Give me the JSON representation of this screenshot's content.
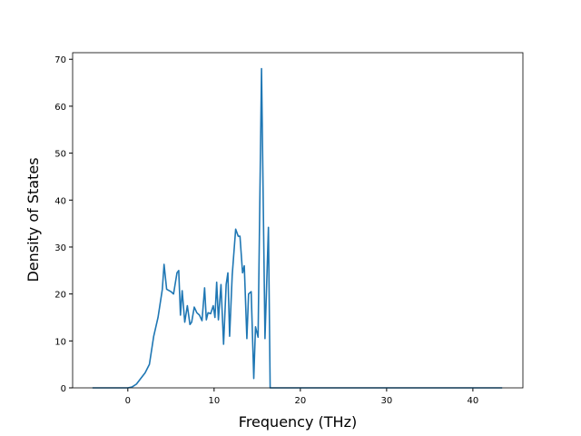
{
  "chart_data": {
    "type": "line",
    "x_label": "Frequency (THz)",
    "y_label": "Density of States",
    "x": [
      -4.1,
      0,
      0.5,
      1,
      1.5,
      2,
      2.5,
      3,
      3.5,
      4,
      4.2,
      4.5,
      5,
      5.3,
      5.7,
      5.9,
      6.1,
      6.3,
      6.6,
      6.9,
      7.2,
      7.4,
      7.7,
      8,
      8.3,
      8.6,
      8.9,
      9.1,
      9.3,
      9.6,
      9.9,
      10.1,
      10.3,
      10.5,
      10.8,
      11.1,
      11.4,
      11.6,
      11.8,
      12.1,
      12.5,
      12.8,
      13,
      13.3,
      13.5,
      13.8,
      14,
      14.3,
      14.6,
      14.8,
      15.1,
      15.5,
      15.9,
      16.3,
      16.5,
      43.4
    ],
    "series": [
      {
        "name": "DOS",
        "color": "#1f77b4",
        "values": [
          0,
          0,
          0.2,
          0.8,
          2,
          3.2,
          5,
          11,
          15,
          21,
          26.3,
          21,
          20.5,
          20,
          24.5,
          25,
          15.5,
          20.7,
          14,
          17.5,
          13.5,
          14,
          17.2,
          16,
          15.5,
          14.3,
          21.3,
          14.5,
          16,
          15.8,
          17.5,
          15,
          22.5,
          14.5,
          22,
          9.3,
          22,
          24.5,
          11,
          24,
          33.8,
          32.3,
          32.3,
          24.5,
          26,
          10.5,
          20,
          20.5,
          2,
          13,
          10.8,
          68,
          10.5,
          34.2,
          0,
          0
        ]
      }
    ],
    "xlim": [
      -6.4,
      45.8
    ],
    "ylim": [
      0,
      71.4
    ],
    "xticks": [
      0,
      10,
      20,
      30,
      40
    ],
    "yticks": [
      0,
      10,
      20,
      30,
      40,
      50,
      60,
      70
    ],
    "grid": false
  }
}
